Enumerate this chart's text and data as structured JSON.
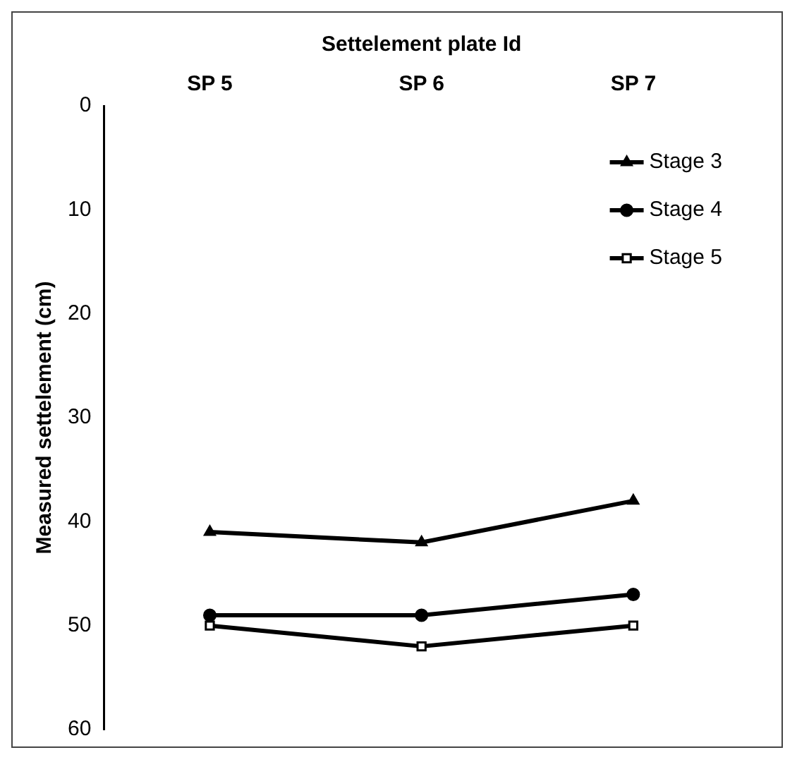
{
  "chart_data": {
    "type": "line",
    "xlabel": "Settelement plate Id",
    "ylabel": "Measured settelement (cm)",
    "categories": [
      "SP 5",
      "SP 6",
      "SP 7"
    ],
    "series": [
      {
        "name": "Stage 3",
        "color": "#000000",
        "marker": "triangle",
        "values": [
          41,
          42,
          38
        ]
      },
      {
        "name": "Stage 4",
        "color": "#000000",
        "marker": "circle",
        "values": [
          49,
          49,
          47
        ]
      },
      {
        "name": "Stage 5",
        "color": "#000000",
        "marker": "square",
        "values": [
          50,
          52,
          50
        ]
      }
    ],
    "ylim": [
      60,
      0
    ],
    "yticks": [
      0,
      10,
      20,
      30,
      40,
      50,
      60
    ],
    "grid": false,
    "legend": "top right",
    "line_style": "solid"
  }
}
